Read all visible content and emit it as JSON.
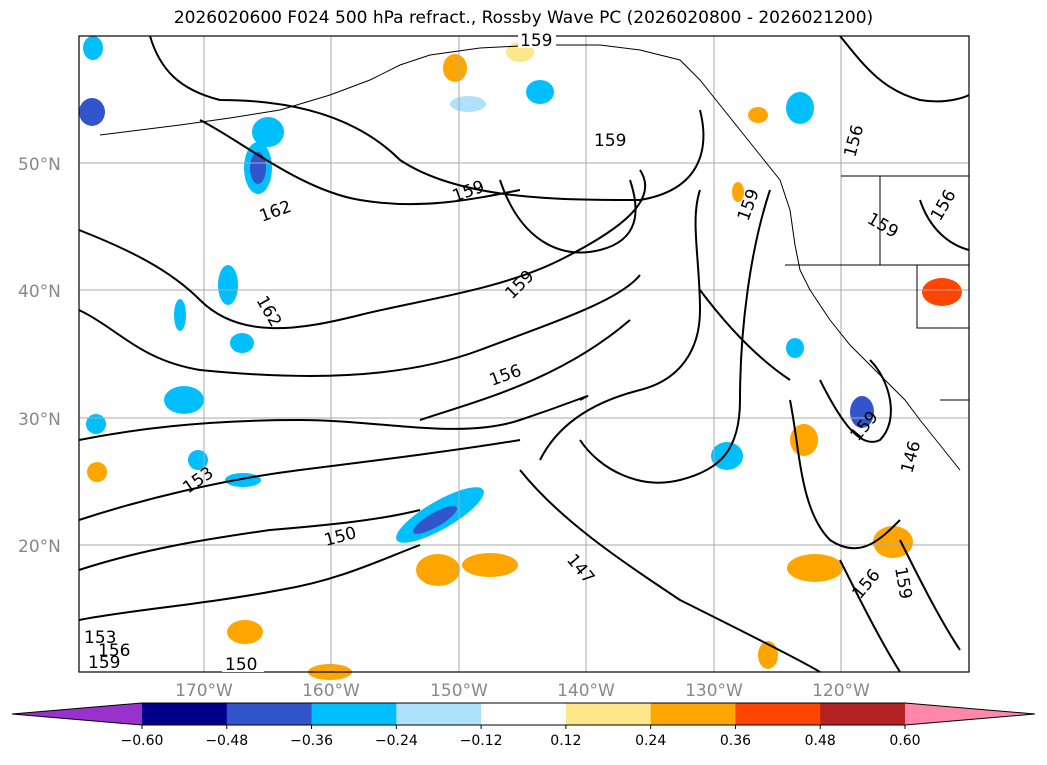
{
  "title": "2026020600 F024 500 hPa refract., Rossby Wave PC (2026020800 - 2026021200)",
  "lat_labels": [
    "50°N",
    "40°N",
    "30°N",
    "20°N"
  ],
  "lon_labels": [
    "170°W",
    "160°W",
    "150°W",
    "140°W",
    "130°W",
    "120°W"
  ],
  "contour_labels": [
    "159",
    "159",
    "159",
    "162",
    "159",
    "159",
    "156",
    "156",
    "159",
    "162",
    "156",
    "159",
    "153",
    "150",
    "147",
    "156",
    "159",
    "146",
    "153",
    "156",
    "159",
    "150"
  ],
  "colorbar": {
    "ticks": [
      "−0.60",
      "−0.48",
      "−0.36",
      "−0.24",
      "−0.12",
      "0.12",
      "0.24",
      "0.36",
      "0.48",
      "0.60"
    ],
    "colors": [
      "#9932cc",
      "#00008b",
      "#3355cc",
      "#00bfff",
      "#aee2fa",
      "#ffffff",
      "#fde78a",
      "#ffa500",
      "#ff4500",
      "#b22222",
      "#ff88aa"
    ]
  }
}
